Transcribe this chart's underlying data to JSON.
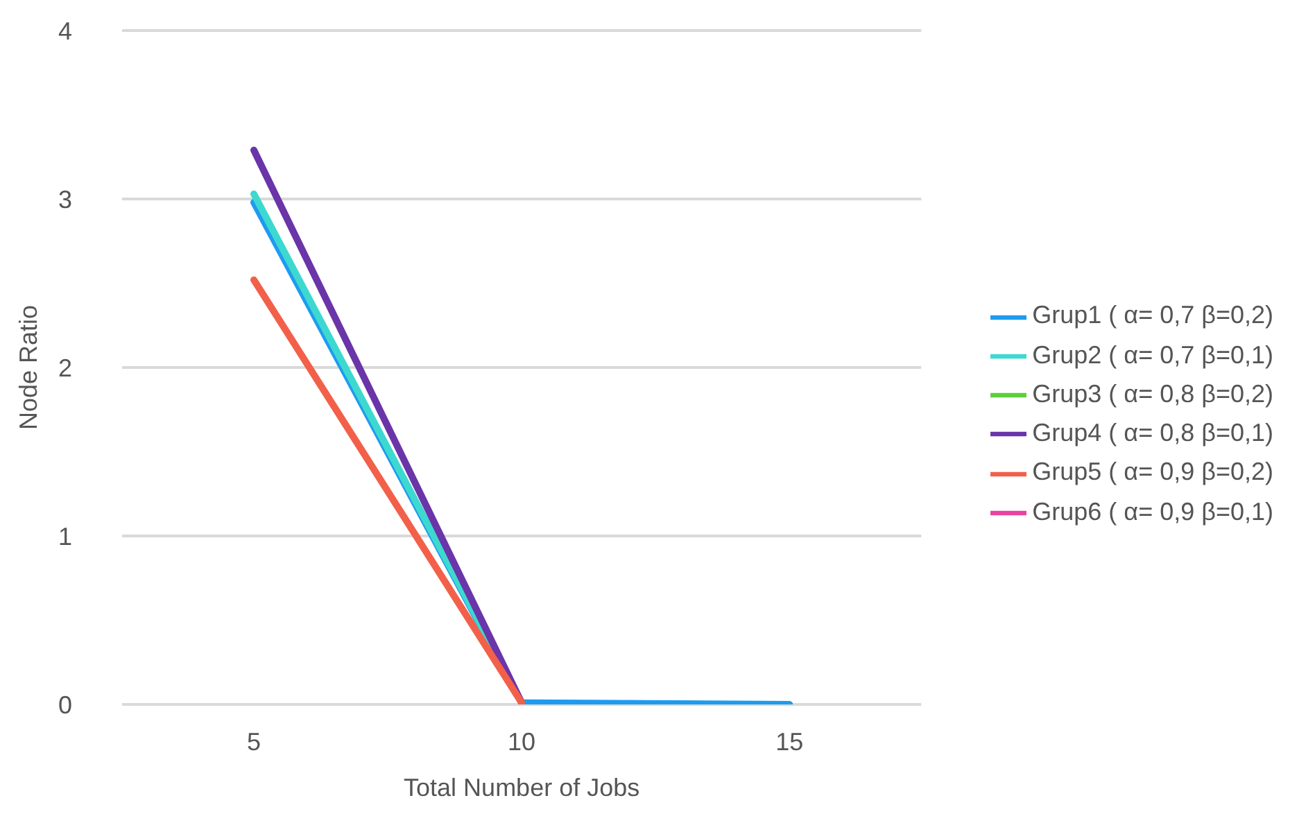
{
  "chart_data": {
    "type": "line",
    "xlabel": "Total Number of Jobs",
    "ylabel": "Node Ratio",
    "categories": [
      "5",
      "10",
      "15"
    ],
    "series": [
      {
        "name": "Grup1 ( α= 0,7 β=0,2)",
        "color": "#1e9bf0",
        "values": [
          2.98,
          0.01,
          0
        ]
      },
      {
        "name": "Grup2 ( α= 0,7 β=0,1)",
        "color": "#3dd9d0",
        "values": [
          3.03,
          0.01,
          null
        ]
      },
      {
        "name": "Grup3 ( α= 0,8 β=0,2)",
        "color": "#5ccf3a",
        "values": [
          null,
          null,
          null
        ]
      },
      {
        "name": "Grup4 ( α= 0,8 β=0,1)",
        "color": "#6a35a8",
        "values": [
          3.29,
          0.01,
          null
        ]
      },
      {
        "name": "Grup5 ( α= 0,9 β=0,2)",
        "color": "#f2604a",
        "values": [
          2.52,
          0.01,
          null
        ]
      },
      {
        "name": "Grup6 ( α= 0,9 β=0,1)",
        "color": "#e8449e",
        "values": [
          null,
          null,
          null
        ]
      }
    ],
    "ylim": [
      0,
      4
    ],
    "yticks": [
      0,
      1,
      2,
      3,
      4
    ],
    "grid": "y",
    "legend": "right",
    "marker": "none",
    "line_style": "solid"
  }
}
